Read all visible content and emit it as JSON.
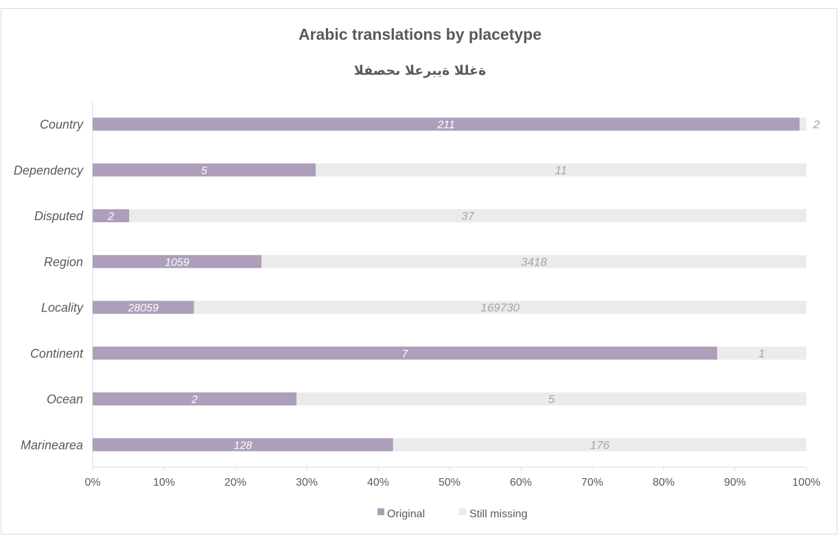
{
  "chart_data": {
    "type": "bar",
    "orientation": "horizontal",
    "stacked": "percent",
    "title": "Arabic translations by placetype",
    "subtitle": "ةغللا ةيبرعلا ىحصفلا",
    "categories": [
      "Country",
      "Dependency",
      "Disputed",
      "Region",
      "Locality",
      "Continent",
      "Ocean",
      "Marinearea"
    ],
    "series": [
      {
        "name": "Original",
        "values": [
          211,
          5,
          2,
          1059,
          28059,
          7,
          2,
          128
        ],
        "color": "#ad9fba"
      },
      {
        "name": "Still missing",
        "values": [
          2,
          11,
          37,
          3418,
          169730,
          1,
          5,
          176
        ],
        "color": "#ebebeb"
      }
    ],
    "xticks": [
      "0%",
      "10%",
      "20%",
      "30%",
      "40%",
      "50%",
      "60%",
      "70%",
      "80%",
      "90%",
      "100%"
    ],
    "xlim": [
      0,
      100
    ],
    "grid": false,
    "legend_position": "bottom"
  }
}
